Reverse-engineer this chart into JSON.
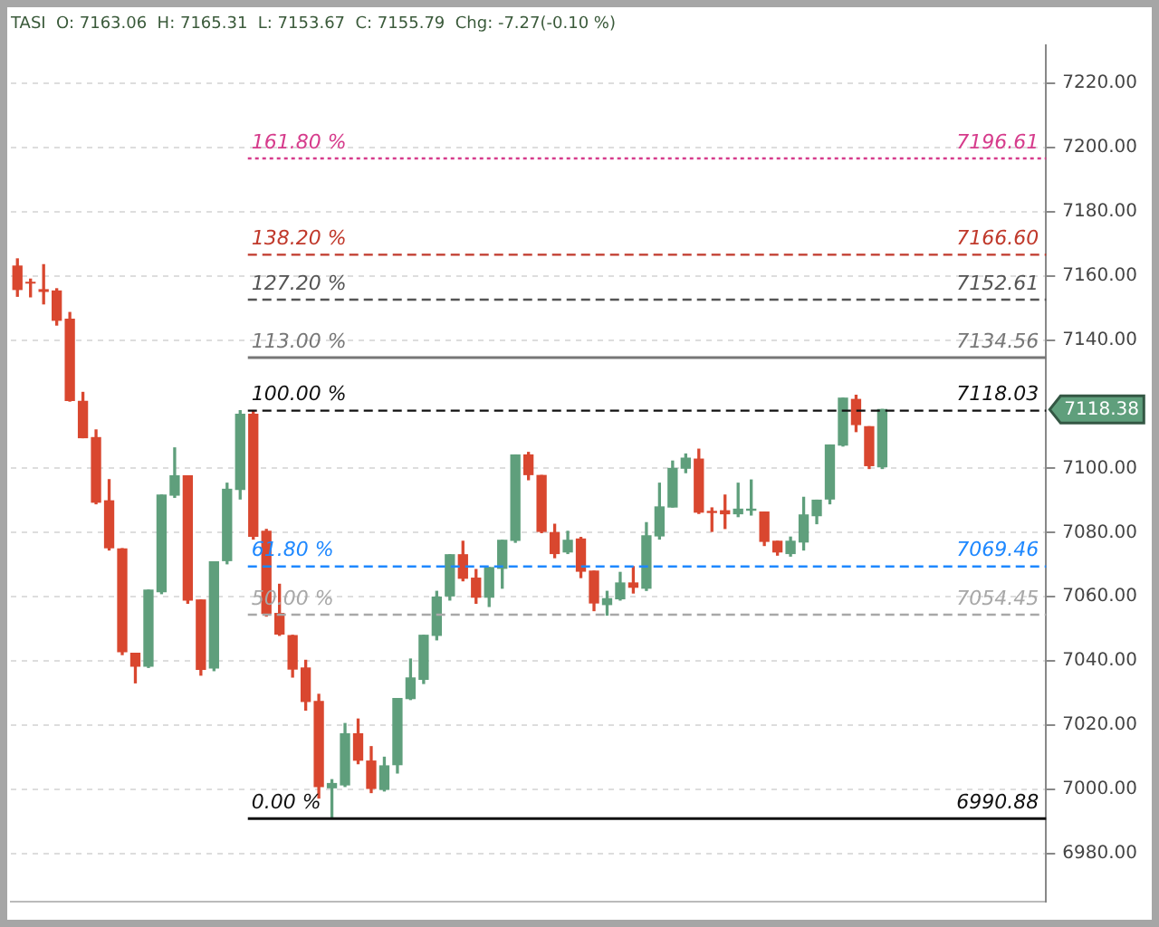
{
  "chart_data": {
    "type": "candlestick",
    "title": "TASI  O: 7163.06  H: 7165.31  L: 7153.67  C: 7155.79  Chg: -7.27(-0.10 %)",
    "categories": [
      null,
      null,
      null,
      null,
      null,
      null,
      null,
      null,
      null,
      null,
      null,
      null,
      null,
      null,
      null,
      null,
      null,
      null,
      null,
      null,
      null,
      null,
      null,
      null,
      null,
      null,
      null,
      null,
      null,
      null,
      null,
      null,
      null,
      null,
      null,
      null,
      null,
      null,
      null,
      null,
      null,
      null,
      null,
      null,
      null,
      null,
      null,
      null,
      null,
      null,
      null,
      null,
      null,
      null,
      null,
      null,
      null,
      null,
      null,
      null,
      null,
      null,
      null,
      null,
      null,
      null,
      null,
      null,
      null,
      null,
      null,
      null,
      null,
      null,
      null,
      null,
      null,
      null,
      null
    ],
    "ohlc": [
      [
        7163.06,
        7165.31,
        7153.67,
        7155.79
      ],
      [
        7158,
        7159,
        7153.5,
        7157.8
      ],
      [
        7155.7,
        7163.5,
        7151.3,
        7155.2
      ],
      [
        7155.3,
        7156,
        7144.7,
        7146.2
      ],
      [
        7146.5,
        7148.6,
        7121,
        7121.2
      ],
      [
        7120.9,
        7123.7,
        7109.6,
        7109.6
      ],
      [
        7109.6,
        7112,
        7089,
        7089.5
      ],
      [
        7089.9,
        7096.5,
        7074.6,
        7075.3
      ],
      [
        7074.9,
        7075,
        7042,
        7042.9
      ],
      [
        7042.4,
        7042.4,
        7033.2,
        7038.4
      ],
      [
        7038.4,
        7062.1,
        7038,
        7062.1
      ],
      [
        7061.6,
        7091.7,
        7061,
        7091.7
      ],
      [
        7091.7,
        7106.4,
        7091,
        7097.7
      ],
      [
        7097.7,
        7097.7,
        7058,
        7059
      ],
      [
        7059,
        7059,
        7035.6,
        7037.4
      ],
      [
        7037.8,
        7070.9,
        7037,
        7070.9
      ],
      [
        7071.3,
        7095.4,
        7070.3,
        7093.5
      ],
      [
        7093.5,
        7118,
        7090.5,
        7116.9
      ],
      [
        7116.9,
        7118.03,
        7078,
        7078.9
      ],
      [
        7080.4,
        7081,
        7054,
        7054.8
      ],
      [
        7054.8,
        7063.9,
        7048,
        7048.4
      ],
      [
        7047.9,
        7048,
        7035,
        7037.5
      ],
      [
        7037.8,
        7040.2,
        7024.7,
        7027.4
      ],
      [
        7027.4,
        7029.6,
        6997.3,
        7000.9
      ],
      [
        7000.5,
        7003,
        6990.88,
        7001.8
      ],
      [
        7001.4,
        7020.5,
        7000.9,
        7017.3
      ],
      [
        7017.3,
        7021.9,
        7008,
        7009.1
      ],
      [
        7008.8,
        7013.3,
        6999,
        7000.3
      ],
      [
        7000,
        7010,
        6999.5,
        7007.3
      ],
      [
        7007.7,
        7028.3,
        7005.1,
        7028.3
      ],
      [
        7028.3,
        7040.6,
        7028,
        7034.7
      ],
      [
        7034.3,
        7048,
        7033,
        7048
      ],
      [
        7048,
        7061.7,
        7046.6,
        7059.9
      ],
      [
        7060.3,
        7073.1,
        7059,
        7073.1
      ],
      [
        7073.1,
        7077.3,
        7065,
        7065.8
      ],
      [
        7065.8,
        7068.5,
        7058,
        7059.9
      ],
      [
        7059.9,
        7069.1,
        7057,
        7069.1
      ],
      [
        7068.9,
        7077.6,
        7062.7,
        7077.6
      ],
      [
        7077.6,
        7104.2,
        7077,
        7104.2
      ],
      [
        7104.2,
        7105,
        7096.5,
        7098.1
      ],
      [
        7097.8,
        7097.8,
        7080,
        7080.4
      ],
      [
        7080,
        7082.6,
        7072.2,
        7073.5
      ],
      [
        7074,
        7080.4,
        7073.5,
        7077.6
      ],
      [
        7078,
        7078.5,
        7066,
        7068
      ],
      [
        7068,
        7068,
        7055.7,
        7058.1
      ],
      [
        7057.6,
        7061.7,
        7054.3,
        7059.4
      ],
      [
        7059.4,
        7067.6,
        7059,
        7064.3
      ],
      [
        7064.3,
        7069.4,
        7061.2,
        7063
      ],
      [
        7062.7,
        7083.1,
        7062,
        7079
      ],
      [
        7079,
        7095.4,
        7078,
        7088
      ],
      [
        7088,
        7102.3,
        7088,
        7100
      ],
      [
        7100.1,
        7104.5,
        7098.7,
        7103.2
      ],
      [
        7102.9,
        7106,
        7086,
        7086.4
      ],
      [
        7086.6,
        7087.7,
        7080.4,
        7086.3
      ],
      [
        7086.8,
        7091.7,
        7081.3,
        7085.9
      ],
      [
        7085.9,
        7095.4,
        7085,
        7087.3
      ],
      [
        7087,
        7096.4,
        7085.5,
        7087.3
      ],
      [
        7086.4,
        7086.4,
        7076,
        7077.3
      ],
      [
        7077.3,
        7077.3,
        7073,
        7074
      ],
      [
        7073.5,
        7078.6,
        7072.7,
        7077.3
      ],
      [
        7077.1,
        7091,
        7074.6,
        7085.5
      ],
      [
        7085.3,
        7090.1,
        7082.8,
        7090.1
      ],
      [
        7090.5,
        7107.3,
        7089,
        7107.3
      ],
      [
        7107.3,
        7121.9,
        7107,
        7121.9
      ],
      [
        7121.5,
        7122.8,
        7111.5,
        7113.7
      ],
      [
        7113,
        7113,
        7100,
        7100.9
      ],
      [
        7100.5,
        7118.38,
        7100,
        7118.38
      ],
      null,
      null,
      null,
      null,
      null,
      null,
      null,
      null,
      null,
      null,
      null,
      null
    ],
    "colors": [
      "#d9472f",
      "#d9472f",
      "#d9472f",
      "#d9472f",
      "#d9472f",
      "#d9472f",
      "#d9472f",
      "#d9472f",
      "#d9472f",
      "#d9472f",
      "#5f9f7c",
      "#5f9f7c",
      "#5f9f7c",
      "#d9472f",
      "#d9472f",
      "#5f9f7c",
      "#5f9f7c",
      "#5f9f7c",
      "#d9472f",
      "#d9472f",
      "#d9472f",
      "#d9472f",
      "#d9472f",
      "#d9472f",
      "#5f9f7c",
      "#5f9f7c",
      "#d9472f",
      "#d9472f",
      "#5f9f7c",
      "#5f9f7c",
      "#5f9f7c",
      "#5f9f7c",
      "#5f9f7c",
      "#5f9f7c",
      "#d9472f",
      "#d9472f",
      "#5f9f7c",
      "#5f9f7c",
      "#5f9f7c",
      "#d9472f",
      "#d9472f",
      "#d9472f",
      "#5f9f7c",
      "#d9472f",
      "#d9472f",
      "#5f9f7c",
      "#5f9f7c",
      "#d9472f",
      "#5f9f7c",
      "#5f9f7c",
      "#5f9f7c",
      "#5f9f7c",
      "#d9472f",
      "#d9472f",
      "#d9472f",
      "#5f9f7c",
      "#5f9f7c",
      "#d9472f",
      "#d9472f",
      "#5f9f7c",
      "#5f9f7c",
      "#5f9f7c",
      "#5f9f7c",
      "#5f9f7c",
      "#d9472f",
      "#d9472f",
      "#5f9f7c",
      null,
      null,
      null,
      null,
      null,
      null,
      null,
      null,
      null,
      null,
      null,
      null
    ],
    "ylim": [
      6965,
      7232
    ],
    "yticks": [
      {
        "value": 6980,
        "label": "6980.00"
      },
      {
        "value": 7000,
        "label": "7000.00"
      },
      {
        "value": 7020,
        "label": "7020.00"
      },
      {
        "value": 7040,
        "label": "7040.00"
      },
      {
        "value": 7060,
        "label": "7060.00"
      },
      {
        "value": 7080,
        "label": "7080.00"
      },
      {
        "value": 7100,
        "label": "7100.00"
      },
      {
        "value": 7140,
        "label": "7140.00"
      },
      {
        "value": 7160,
        "label": "7160.00"
      },
      {
        "value": 7180,
        "label": "7180.00"
      },
      {
        "value": 7200,
        "label": "7200.00"
      },
      {
        "value": 7220,
        "label": "7220.00"
      }
    ],
    "grid": "y",
    "ref_lines": [
      {
        "axis": "y",
        "value": 7196.61,
        "label": "7196.61",
        "color": "#d63c8c",
        "line_style": "dotted"
      },
      {
        "axis": "y",
        "value": 7166.6,
        "label": "7166.60",
        "color": "#c0392b",
        "line_style": "dashed"
      },
      {
        "axis": "y",
        "value": 7152.61,
        "label": "7152.61",
        "color": "#555555",
        "line_style": "dashed"
      },
      {
        "axis": "y",
        "value": 7134.56,
        "label": "7134.56",
        "color": "#777777",
        "line_style": "solid"
      },
      {
        "axis": "y",
        "value": 7118.03,
        "label": "7118.03",
        "color": "#111111",
        "line_style": "dashed"
      },
      {
        "axis": "y",
        "value": 7069.46,
        "label": "7069.46",
        "color": "#1e88ff",
        "line_style": "dashed"
      },
      {
        "axis": "y",
        "value": 7054.45,
        "label": "7054.45",
        "color": "#a8a8a8",
        "line_style": "dashed"
      },
      {
        "axis": "y",
        "value": 6990.88,
        "label": "6990.88",
        "color": "#111111",
        "line_style": "solid"
      }
    ],
    "annotations": [
      {
        "text": "161.80 %",
        "y": 7196.61
      },
      {
        "text": "138.20 %",
        "y": 7166.6
      },
      {
        "text": "127.20 %",
        "y": 7152.61
      },
      {
        "text": "113.00 %",
        "y": 7134.56
      },
      {
        "text": "100.00 %",
        "y": 7118.03
      },
      {
        "text": "61.80 %",
        "y": 7069.46
      },
      {
        "text": "50.00 %",
        "y": 7054.45
      },
      {
        "text": "0.00 %",
        "y": 6990.88
      },
      "7118.38"
    ]
  }
}
